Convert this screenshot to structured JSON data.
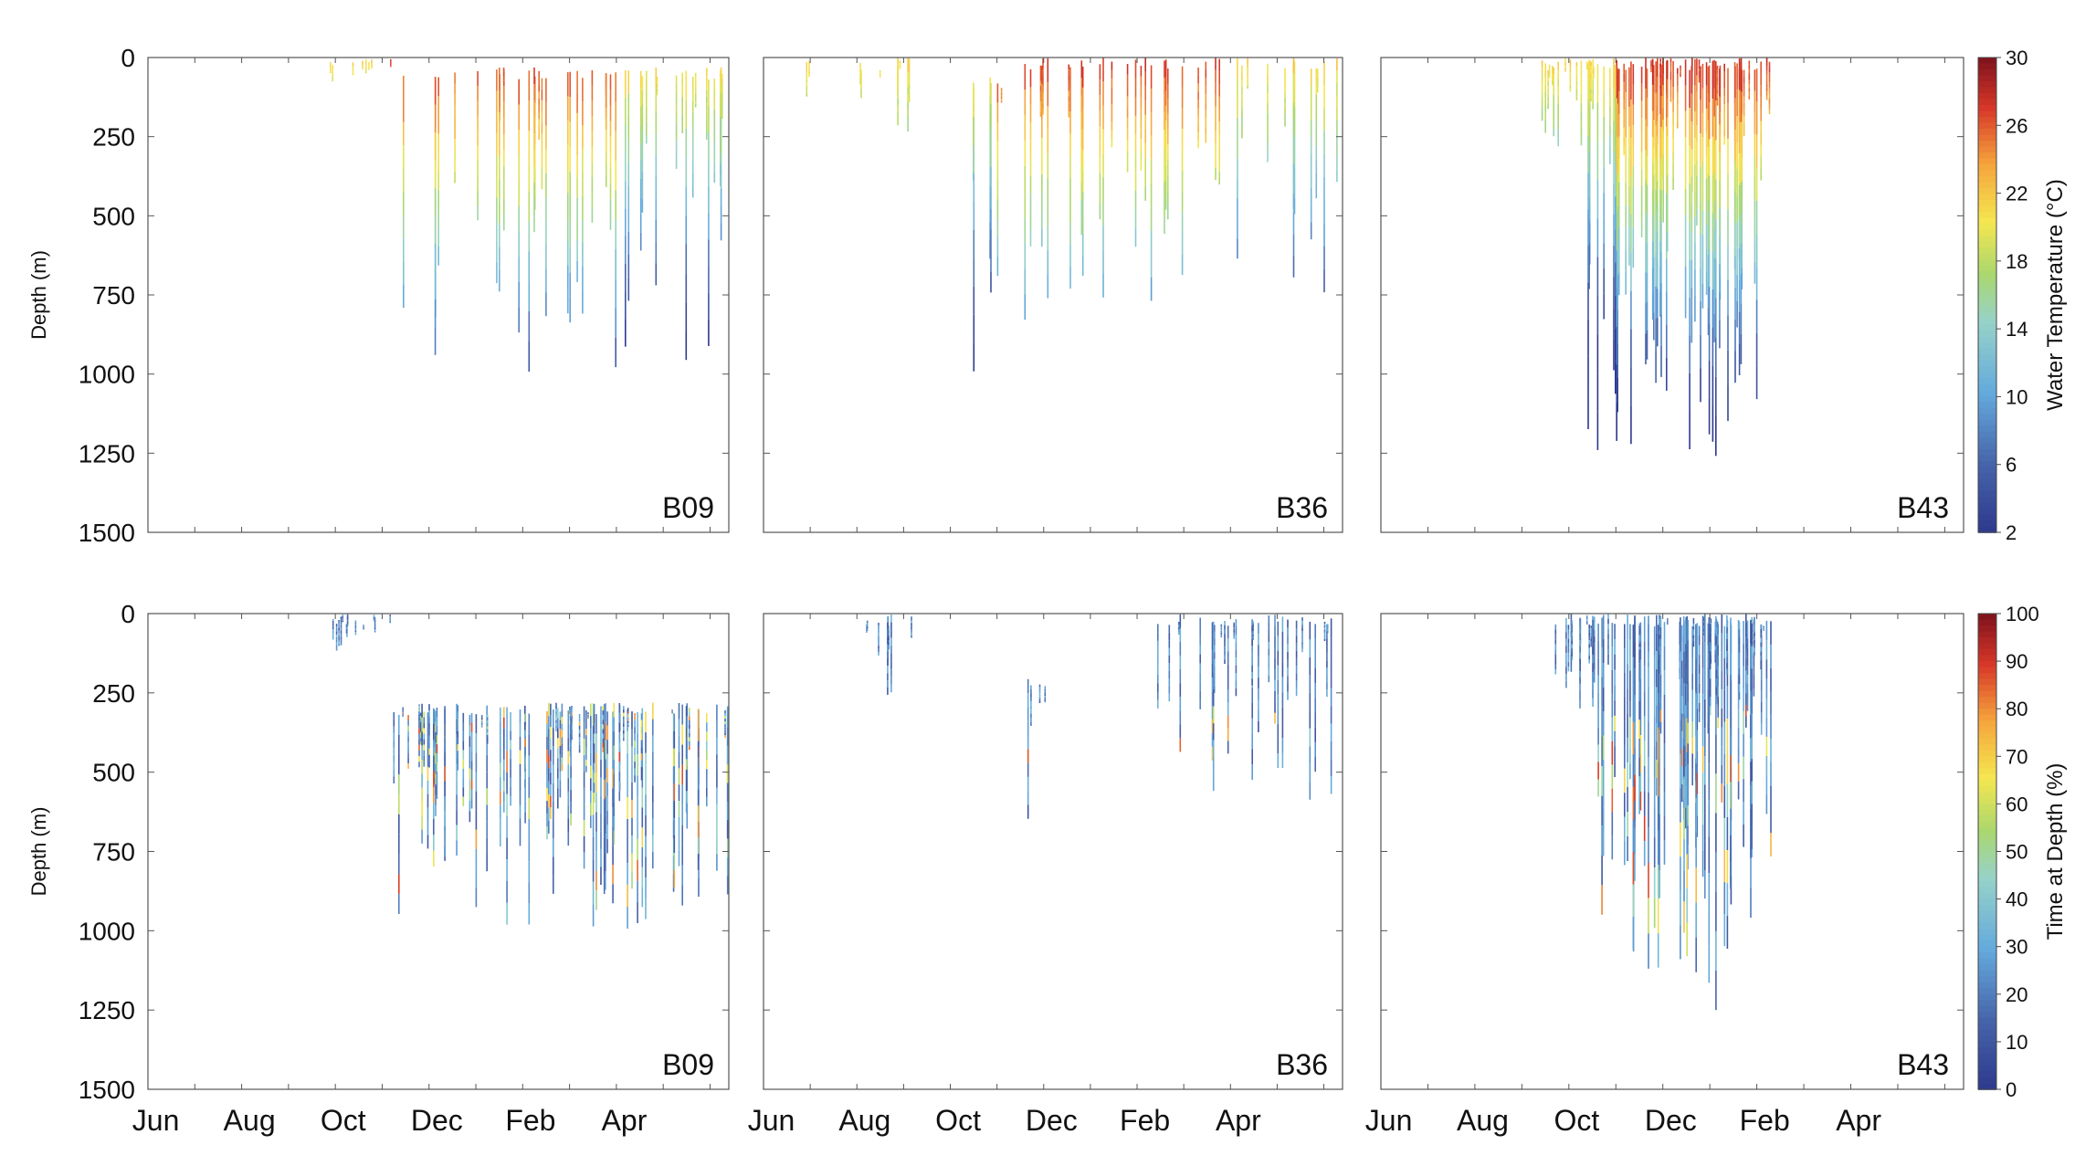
{
  "chart_data": {
    "type": "heatmap",
    "description_axes": {
      "y_label": "Depth (m)",
      "y_ticks": [
        "0",
        "250",
        "500",
        "750",
        "1000",
        "1250",
        "1500"
      ],
      "y_range": [
        0,
        1500
      ],
      "x_ticks": [
        "Jun",
        "Aug",
        "Oct",
        "Dec",
        "Feb",
        "Apr"
      ],
      "x_range_months": [
        0,
        12.4
      ]
    },
    "colorbars": [
      {
        "label": "Water Temperature (°C)",
        "ticks": [
          "30",
          "26",
          "22",
          "18",
          "14",
          "10",
          "6",
          "2"
        ],
        "range": [
          2,
          30
        ]
      },
      {
        "label": "Time at Depth (%)",
        "ticks": [
          "100",
          "90",
          "80",
          "70",
          "60",
          "50",
          "40",
          "30",
          "20",
          "10",
          "0"
        ],
        "range": [
          0,
          100
        ]
      }
    ],
    "panels": [
      {
        "row": "temperature",
        "tag": "B09",
        "seed": 11,
        "ranges": [
          [
            3.8,
            4.2,
            2,
            8,
            3,
            100
          ],
          [
            4.2,
            5.2,
            6,
            14,
            4,
            60
          ],
          [
            5.3,
            12.3,
            45,
            10,
            30,
            1000
          ]
        ]
      },
      {
        "row": "temperature",
        "tag": "B36",
        "seed": 23,
        "ranges": [
          [
            0.9,
            1.0,
            2,
            8,
            0,
            200
          ],
          [
            2.0,
            3.2,
            8,
            8,
            0,
            250
          ],
          [
            4.0,
            5.2,
            6,
            15,
            60,
            1000
          ],
          [
            5.5,
            12.4,
            40,
            28,
            0,
            830
          ]
        ]
      },
      {
        "row": "temperature",
        "tag": "B43",
        "seed": 37,
        "ranges": [
          [
            3.4,
            4.4,
            12,
            24,
            0,
            300
          ],
          [
            4.4,
            8.3,
            80,
            28,
            0,
            1270
          ]
        ]
      },
      {
        "row": "time_at_depth",
        "tag": "B09",
        "seed": 53,
        "ranges": [
          [
            3.8,
            5.2,
            14,
            12,
            0,
            120
          ],
          [
            5.2,
            12.4,
            90,
            10,
            280,
            1000
          ]
        ]
      },
      {
        "row": "time_at_depth",
        "tag": "B36",
        "seed": 71,
        "ranges": [
          [
            2.2,
            3.2,
            8,
            6,
            0,
            260
          ],
          [
            5.4,
            6.2,
            4,
            6,
            200,
            700
          ],
          [
            7.5,
            12.4,
            30,
            10,
            0,
            600
          ]
        ]
      },
      {
        "row": "time_at_depth",
        "tag": "B43",
        "seed": 89,
        "ranges": [
          [
            3.7,
            4.6,
            14,
            14,
            0,
            300
          ],
          [
            4.6,
            8.3,
            80,
            14,
            0,
            1270
          ]
        ]
      }
    ]
  }
}
